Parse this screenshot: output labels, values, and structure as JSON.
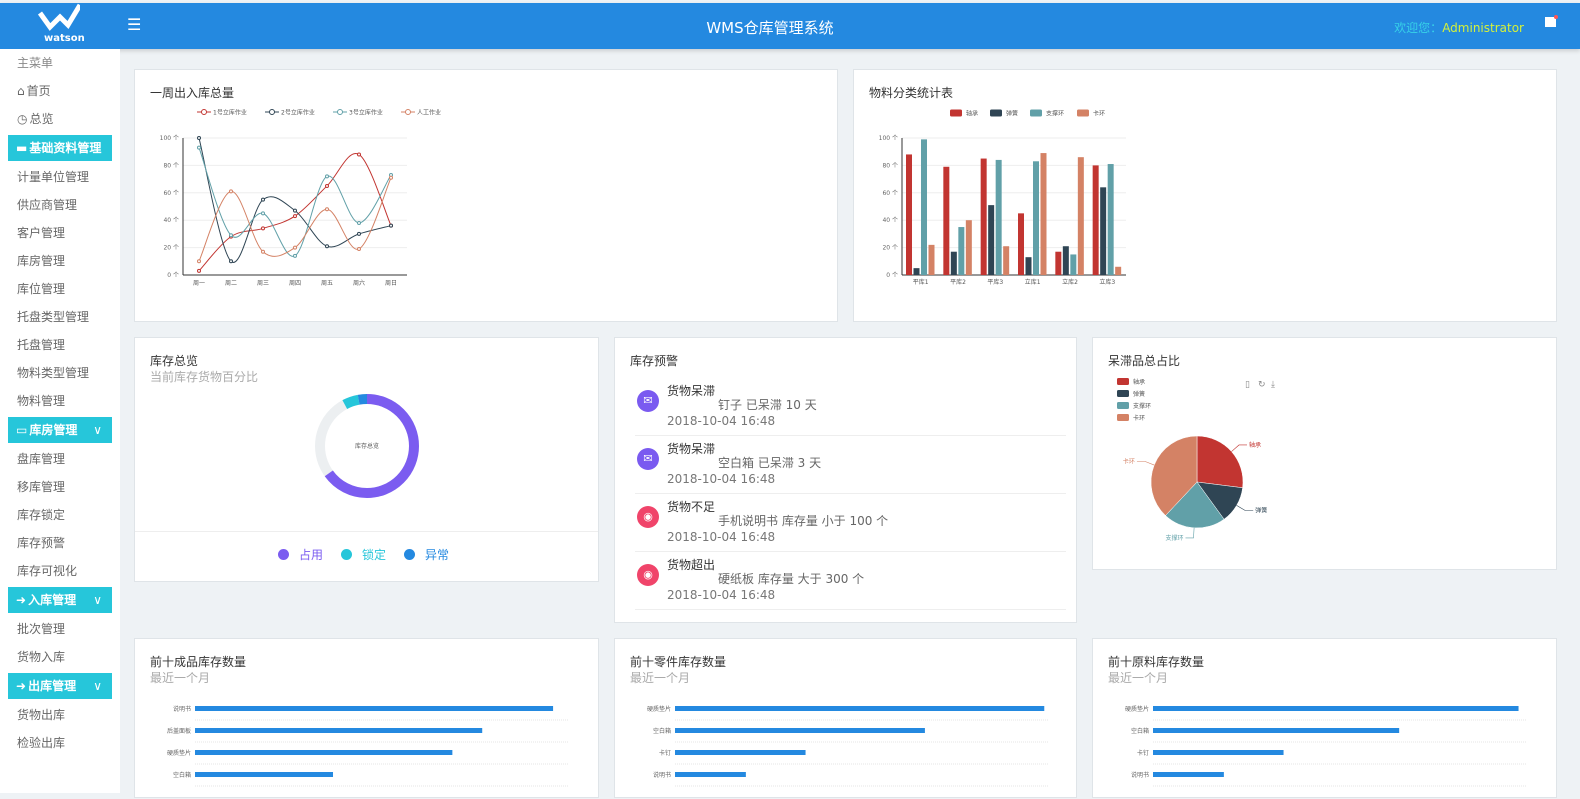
{
  "header": {
    "logo_text": "watson",
    "title": "WMS仓库管理系统",
    "welcome_label": "欢迎您：",
    "user": "Administrator",
    "menu_icon": "hamburger-icon",
    "flag_icon": "flag-icon",
    "color": "#2489e0"
  },
  "sidebar": {
    "heading": "主菜单",
    "items": [
      {
        "type": "item",
        "label": "首页",
        "icon": "⌂"
      },
      {
        "type": "item",
        "label": "总览",
        "icon": "◷"
      },
      {
        "type": "group",
        "label": "基础资料管理",
        "icon": "▬"
      },
      {
        "type": "item",
        "label": "计量单位管理"
      },
      {
        "type": "item",
        "label": "供应商管理"
      },
      {
        "type": "item",
        "label": "客户管理"
      },
      {
        "type": "item",
        "label": "库房管理"
      },
      {
        "type": "item",
        "label": "库位管理"
      },
      {
        "type": "item",
        "label": "托盘类型管理"
      },
      {
        "type": "item",
        "label": "托盘管理"
      },
      {
        "type": "item",
        "label": "物料类型管理"
      },
      {
        "type": "item",
        "label": "物料管理"
      },
      {
        "type": "group",
        "label": "库房管理",
        "icon": "▭",
        "chevron": "∨"
      },
      {
        "type": "item",
        "label": "盘库管理"
      },
      {
        "type": "item",
        "label": "移库管理"
      },
      {
        "type": "item",
        "label": "库存锁定"
      },
      {
        "type": "item",
        "label": "库存预警"
      },
      {
        "type": "item",
        "label": "库存可视化"
      },
      {
        "type": "group",
        "label": "入库管理",
        "icon": "➜",
        "chevron": "∨"
      },
      {
        "type": "item",
        "label": "批次管理"
      },
      {
        "type": "item",
        "label": "货物入库"
      },
      {
        "type": "group",
        "label": "出库管理",
        "icon": "➜",
        "chevron": "∨"
      },
      {
        "type": "item",
        "label": "货物出库"
      },
      {
        "type": "item",
        "label": "检验出库"
      }
    ],
    "accent": "#26c6da"
  },
  "warning": {
    "title": "库存预警",
    "items": [
      {
        "type": "货物呆滞",
        "desc": "钉子 已呆滞 10 天",
        "time": "2018-10-04 16:48",
        "icon": "envelope-icon",
        "color": "#7a5af0"
      },
      {
        "type": "货物呆滞",
        "desc": "空白箱 已呆滞 3 天",
        "time": "2018-10-04 16:48",
        "icon": "envelope-icon",
        "color": "#7a5af0"
      },
      {
        "type": "货物不足",
        "desc": "手机说明书 库存量 小于 100 个",
        "time": "2018-10-04 16:48",
        "icon": "globe-icon",
        "color": "#f0446a"
      },
      {
        "type": "货物超出",
        "desc": "硬纸板 库存量 大于 300 个",
        "time": "2018-10-04 16:48",
        "icon": "globe-icon",
        "color": "#f0446a"
      }
    ]
  },
  "chart_data": [
    {
      "id": "weekly",
      "type": "line",
      "title": "一周出入库总量",
      "categories": [
        "周一",
        "周二",
        "周三",
        "周四",
        "周五",
        "周六",
        "周日"
      ],
      "ylim": [
        0,
        100
      ],
      "yticks": [
        "0 个",
        "20 个",
        "40 个",
        "60 个",
        "80 个",
        "100 个"
      ],
      "legend": "top",
      "grid": true,
      "smooth": true,
      "series": [
        {
          "name": "1号立库作业",
          "color": "#c23531",
          "values": [
            3,
            28,
            34,
            43,
            65,
            88,
            36
          ]
        },
        {
          "name": "2号立库作业",
          "color": "#2f4554",
          "values": [
            100,
            10,
            55,
            47,
            21,
            30,
            36
          ]
        },
        {
          "name": "3号立库作业",
          "color": "#61a0a8",
          "values": [
            93,
            29,
            45,
            14,
            72,
            38,
            73
          ]
        },
        {
          "name": "人工作业",
          "color": "#d48265",
          "values": [
            10,
            61,
            17,
            20,
            48,
            19,
            71
          ]
        }
      ]
    },
    {
      "id": "material",
      "type": "bar",
      "title": "物料分类统计表",
      "categories": [
        "平库1",
        "平库2",
        "平库3",
        "立库1",
        "立库2",
        "立库3"
      ],
      "ylim": [
        0,
        100
      ],
      "yticks": [
        "0 个",
        "20 个",
        "40 个",
        "60 个",
        "80 个",
        "100 个"
      ],
      "legend": "top",
      "grid": true,
      "series": [
        {
          "name": "轴承",
          "color": "#c23531",
          "values": [
            88,
            79,
            85,
            45,
            17,
            80
          ]
        },
        {
          "name": "弹簧",
          "color": "#2f4554",
          "values": [
            5,
            17,
            51,
            13,
            21,
            64
          ]
        },
        {
          "name": "支撑环",
          "color": "#61a0a8",
          "values": [
            99,
            35,
            84,
            83,
            15,
            81
          ]
        },
        {
          "name": "卡环",
          "color": "#d48265",
          "values": [
            22,
            40,
            21,
            89,
            86,
            6
          ]
        }
      ]
    },
    {
      "id": "inventory",
      "type": "pie",
      "title": "库存总览",
      "subtitle": "当前库存货物百分比",
      "center_label": "库存总览",
      "donut": true,
      "slices": [
        {
          "name": "占用",
          "color": "#7b5cf0",
          "value": 65
        },
        {
          "name": "锁定",
          "color": "#26c6da",
          "value": 5
        },
        {
          "name": "异常",
          "color": "#2489e0",
          "value": 3
        },
        {
          "name": "",
          "color": "#eceff1",
          "value": 27
        }
      ]
    },
    {
      "id": "stagnant",
      "type": "pie",
      "title": "呆滞品总占比",
      "legend": "top-left",
      "toolbox": [
        "file-icon",
        "refresh-icon",
        "download-icon"
      ],
      "slices": [
        {
          "name": "轴承",
          "color": "#c23531",
          "value": 27
        },
        {
          "name": "弹簧",
          "color": "#2f4554",
          "value": 13
        },
        {
          "name": "支撑环",
          "color": "#61a0a8",
          "value": 22
        },
        {
          "name": "卡环",
          "color": "#d48265",
          "value": 38
        }
      ]
    },
    {
      "id": "top-finished",
      "type": "bar",
      "orientation": "horizontal",
      "title": "前十成品库存数量",
      "subtitle": "最近一个月",
      "categories": [
        "说明书",
        "后盖面板",
        "硬质垫片",
        "空白箱"
      ],
      "values": [
        96,
        77,
        69,
        37
      ],
      "xlim": [
        0,
        100
      ],
      "color": "#2489e0"
    },
    {
      "id": "top-parts",
      "type": "bar",
      "orientation": "horizontal",
      "title": "前十零件库存数量",
      "subtitle": "最近一个月",
      "categories": [
        "硬质垫片",
        "空白箱",
        "卡钉",
        "说明书"
      ],
      "values": [
        99,
        67,
        35,
        19
      ],
      "xlim": [
        0,
        100
      ],
      "color": "#2489e0"
    },
    {
      "id": "top-raw",
      "type": "bar",
      "orientation": "horizontal",
      "title": "前十原料库存数量",
      "subtitle": "最近一个月",
      "categories": [
        "硬质垫片",
        "空白箱",
        "卡钉",
        "说明书"
      ],
      "values": [
        98,
        66,
        35,
        19
      ],
      "xlim": [
        0,
        100
      ],
      "color": "#2489e0"
    }
  ]
}
